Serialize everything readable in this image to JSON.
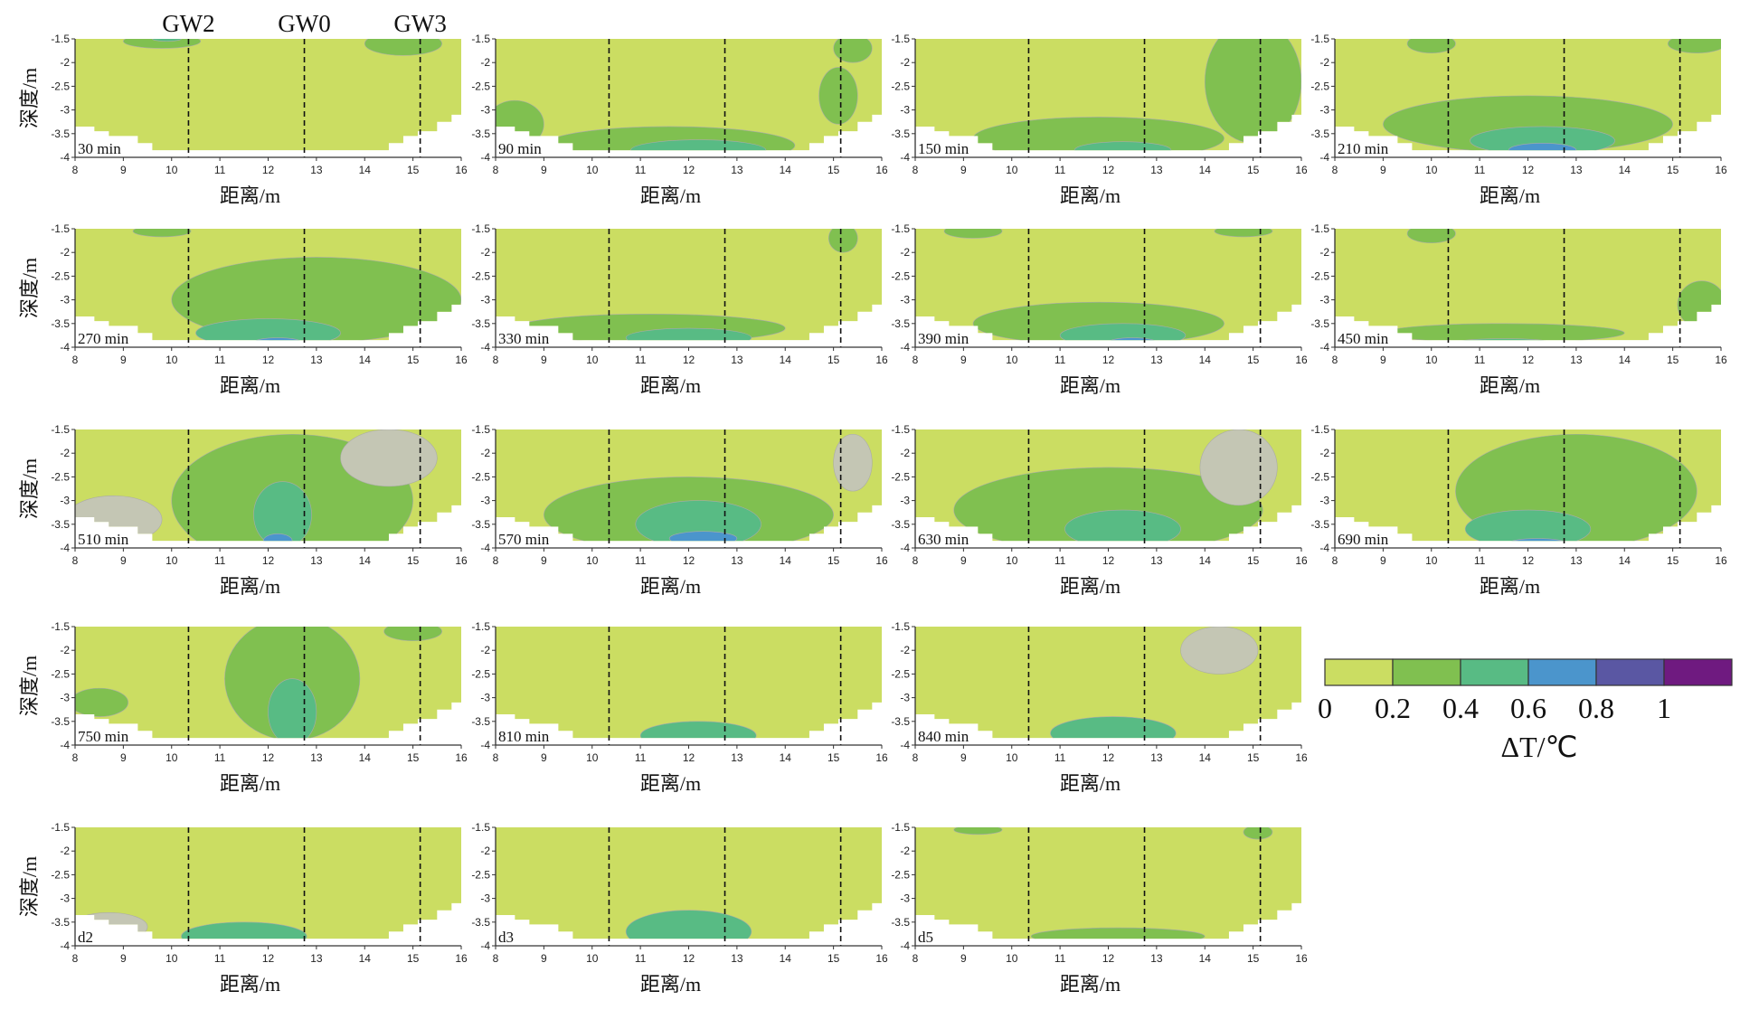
{
  "chart_data": {
    "type": "heatmap",
    "subtype": "contour-panels",
    "xlabel": "距离/m",
    "ylabel": "深度/m",
    "xlim": [
      8,
      16
    ],
    "ylim": [
      -4,
      -1.5
    ],
    "xticks": [
      "8",
      "9",
      "10",
      "11",
      "12",
      "13",
      "14",
      "15",
      "16"
    ],
    "yticks": [
      "-1.5",
      "-2",
      "-2.5",
      "-3",
      "-3.5",
      "-4"
    ],
    "wells": [
      {
        "name": "GW2",
        "x": 10.35
      },
      {
        "name": "GW0",
        "x": 12.75
      },
      {
        "name": "GW3",
        "x": 15.15
      }
    ],
    "domain_outline": [
      [
        8,
        -1.5
      ],
      [
        16,
        -1.5
      ],
      [
        16,
        -3.1
      ],
      [
        15.8,
        -3.1
      ],
      [
        15.8,
        -3.25
      ],
      [
        15.5,
        -3.25
      ],
      [
        15.5,
        -3.45
      ],
      [
        15.1,
        -3.45
      ],
      [
        15.1,
        -3.55
      ],
      [
        14.8,
        -3.55
      ],
      [
        14.8,
        -3.7
      ],
      [
        14.5,
        -3.7
      ],
      [
        14.5,
        -3.85
      ],
      [
        9.6,
        -3.85
      ],
      [
        9.6,
        -3.7
      ],
      [
        9.3,
        -3.7
      ],
      [
        9.3,
        -3.55
      ],
      [
        8.7,
        -3.55
      ],
      [
        8.7,
        -3.45
      ],
      [
        8.4,
        -3.45
      ],
      [
        8.4,
        -3.35
      ],
      [
        8,
        -3.35
      ]
    ],
    "colorbar": {
      "title": "ΔT/℃",
      "ticks": [
        "0",
        "0.2",
        "0.4",
        "0.6",
        "0.8",
        "1"
      ],
      "colors": [
        "#cbdd62",
        "#80c050",
        "#58bb84",
        "#4b95cc",
        "#5a57a3",
        "#6f1a80"
      ]
    },
    "negative_color": "#c4c6b4",
    "panels": [
      {
        "label": "30 min",
        "zones": [
          [
            9.8,
            -1.55,
            0.8,
            0.15,
            1
          ],
          [
            14.8,
            -1.6,
            0.8,
            0.25,
            1
          ],
          [
            9.9,
            -1.5,
            0.3,
            0.05,
            2
          ]
        ]
      },
      {
        "label": "90 min",
        "zones": [
          [
            11.6,
            -3.75,
            2.6,
            0.4,
            1
          ],
          [
            12.2,
            -3.85,
            1.4,
            0.22,
            2
          ],
          [
            8.4,
            -3.3,
            0.6,
            0.5,
            1
          ],
          [
            15.1,
            -2.7,
            0.4,
            0.6,
            1
          ],
          [
            15.4,
            -1.7,
            0.4,
            0.3,
            1
          ]
        ]
      },
      {
        "label": "150 min",
        "zones": [
          [
            11.8,
            -3.6,
            2.6,
            0.45,
            1
          ],
          [
            12.3,
            -3.85,
            1.0,
            0.18,
            2
          ],
          [
            15,
            -2.4,
            1.0,
            1.3,
            1
          ]
        ]
      },
      {
        "label": "210 min",
        "zones": [
          [
            12,
            -3.3,
            3,
            0.6,
            1
          ],
          [
            12.3,
            -3.65,
            1.5,
            0.3,
            2
          ],
          [
            12.3,
            -3.85,
            0.7,
            0.15,
            3
          ],
          [
            15.5,
            -1.6,
            0.6,
            0.2,
            1
          ],
          [
            10,
            -1.6,
            0.5,
            0.2,
            1
          ]
        ]
      },
      {
        "label": "270 min",
        "zones": [
          [
            13,
            -3.0,
            3,
            0.9,
            1
          ],
          [
            12,
            -3.7,
            1.5,
            0.3,
            2
          ],
          [
            12.2,
            -3.9,
            0.5,
            0.1,
            3
          ],
          [
            9.8,
            -1.55,
            0.6,
            0.12,
            1
          ]
        ]
      },
      {
        "label": "330 min",
        "zones": [
          [
            11.2,
            -3.6,
            2.8,
            0.3,
            1
          ],
          [
            12,
            -3.8,
            1.3,
            0.2,
            2
          ],
          [
            15.2,
            -1.7,
            0.3,
            0.3,
            1
          ]
        ]
      },
      {
        "label": "390 min",
        "zones": [
          [
            11.8,
            -3.5,
            2.6,
            0.45,
            1
          ],
          [
            12.3,
            -3.75,
            1.3,
            0.25,
            2
          ],
          [
            12.5,
            -3.9,
            0.5,
            0.1,
            3
          ],
          [
            9.2,
            -1.55,
            0.6,
            0.15,
            1
          ],
          [
            14.8,
            -1.55,
            0.6,
            0.12,
            1
          ]
        ]
      },
      {
        "label": "450 min",
        "zones": [
          [
            11.5,
            -3.7,
            2.5,
            0.2,
            1
          ],
          [
            11.5,
            -3.9,
            1,
            0.08,
            2
          ],
          [
            10,
            -1.6,
            0.5,
            0.2,
            1
          ],
          [
            15.6,
            -3.1,
            0.5,
            0.5,
            1
          ]
        ]
      },
      {
        "label": "510 min",
        "zones": [
          [
            12.5,
            -3,
            2.5,
            1.4,
            1
          ],
          [
            12.3,
            -3.3,
            0.6,
            0.7,
            2
          ],
          [
            12.2,
            -3.85,
            0.3,
            0.15,
            3
          ],
          [
            8.8,
            -3.4,
            1,
            0.5,
            -1
          ],
          [
            14.5,
            -2.1,
            1,
            0.6,
            -1
          ]
        ]
      },
      {
        "label": "570 min",
        "zones": [
          [
            12,
            -3.3,
            3,
            0.8,
            1
          ],
          [
            12.2,
            -3.5,
            1.3,
            0.5,
            2
          ],
          [
            12.3,
            -3.8,
            0.7,
            0.15,
            3
          ],
          [
            15.4,
            -2.2,
            0.4,
            0.6,
            -1
          ]
        ]
      },
      {
        "label": "630 min",
        "zones": [
          [
            12,
            -3.2,
            3.2,
            0.9,
            1
          ],
          [
            12.3,
            -3.6,
            1.2,
            0.4,
            2
          ],
          [
            14.7,
            -2.3,
            0.8,
            0.8,
            -1
          ]
        ]
      },
      {
        "label": "690 min",
        "zones": [
          [
            13,
            -2.8,
            2.5,
            1.2,
            1
          ],
          [
            12,
            -3.6,
            1.3,
            0.4,
            2
          ],
          [
            12.2,
            -3.9,
            0.6,
            0.1,
            3
          ]
        ]
      },
      {
        "label": "750 min",
        "zones": [
          [
            12.5,
            -2.6,
            1.4,
            1.3,
            1
          ],
          [
            12.5,
            -3.3,
            0.5,
            0.7,
            2
          ],
          [
            8.5,
            -3.1,
            0.6,
            0.3,
            1
          ],
          [
            15,
            -1.6,
            0.6,
            0.2,
            1
          ]
        ]
      },
      {
        "label": "810 min",
        "zones": [
          [
            12.2,
            -3.8,
            1.2,
            0.3,
            2
          ]
        ]
      },
      {
        "label": "840 min",
        "zones": [
          [
            12.1,
            -3.75,
            1.3,
            0.35,
            2
          ],
          [
            14.3,
            -2,
            0.8,
            0.5,
            -1
          ]
        ]
      },
      {
        "label": "d2",
        "zones": [
          [
            11.5,
            -3.8,
            1.3,
            0.3,
            2
          ],
          [
            8.7,
            -3.6,
            0.8,
            0.3,
            -1
          ]
        ]
      },
      {
        "label": "d3",
        "zones": [
          [
            12,
            -3.7,
            1.3,
            0.45,
            2
          ]
        ]
      },
      {
        "label": "d5",
        "zones": [
          [
            12.2,
            -3.8,
            1.8,
            0.18,
            1
          ],
          [
            9.3,
            -1.55,
            0.5,
            0.1,
            1
          ],
          [
            15.1,
            -1.6,
            0.3,
            0.15,
            1
          ]
        ]
      }
    ]
  }
}
